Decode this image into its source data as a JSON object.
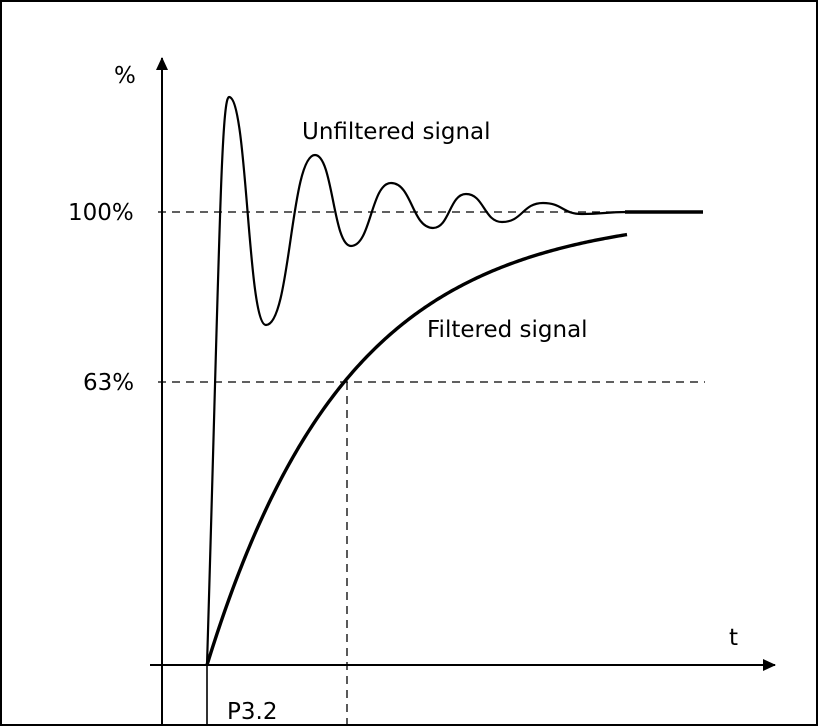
{
  "chart_data": {
    "type": "line",
    "title": "",
    "ylabel": "%",
    "xlabel": "t",
    "ylim": [
      0,
      100
    ],
    "y_ticks": [
      {
        "value": 100,
        "label": "100%"
      },
      {
        "value": 63,
        "label": "63%"
      }
    ],
    "time_constant_label": "P3.2",
    "series": [
      {
        "name": "Unfiltered signal"
      },
      {
        "name": "Filtered signal"
      }
    ],
    "grid": false,
    "colors": {
      "line": "#000000",
      "background": "#ffffff"
    }
  }
}
